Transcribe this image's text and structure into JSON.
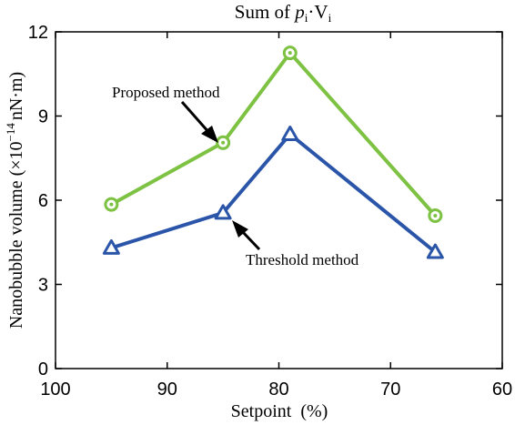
{
  "chart_data": {
    "type": "line",
    "title": "Sum of pᵢ·Vᵢ",
    "title_parts": {
      "prefix": "Sum of ",
      "p": "p",
      "sub1": "i",
      "dot": "·",
      "v": "V",
      "sub2": "i"
    },
    "xlabel": "Setpoint  (%)",
    "ylabel": "Nanobubble volume (×10⁻¹⁴ nN·m)",
    "ylabel_parts": {
      "main": "Nanobubble volume (×10",
      "exp": "−14",
      "unit": "nN·m)"
    },
    "xlim": [
      100,
      60
    ],
    "ylim": [
      0,
      12
    ],
    "x_ticks": [
      100,
      90,
      80,
      70,
      60
    ],
    "y_ticks": [
      0,
      3,
      6,
      9,
      12
    ],
    "grid": false,
    "series": [
      {
        "name": "Proposed method",
        "color": "#7dc242",
        "marker": "circle",
        "x": [
          95,
          85,
          79,
          66
        ],
        "y": [
          5.85,
          8.05,
          11.25,
          5.45
        ]
      },
      {
        "name": "Threshold method",
        "color": "#2a55a8",
        "marker": "triangle",
        "x": [
          95,
          85,
          79,
          66
        ],
        "y": [
          4.3,
          5.55,
          8.35,
          4.15
        ]
      }
    ],
    "annotations": [
      {
        "text": "Proposed method",
        "series": 0
      },
      {
        "text": "Threshold method",
        "series": 1
      }
    ]
  }
}
